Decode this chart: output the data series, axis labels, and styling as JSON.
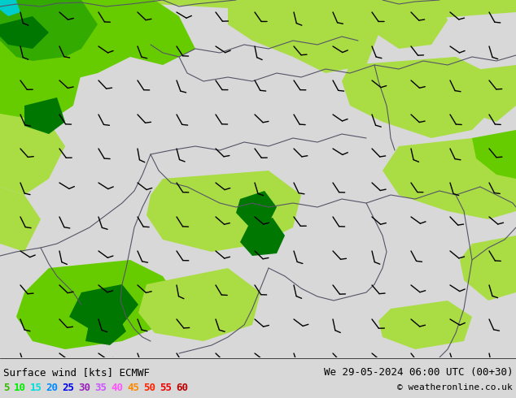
{
  "title_left": "Surface wind [kts] ECMWF",
  "title_right": "We 29-05-2024 06:00 UTC (00+30)",
  "copyright": "© weatheronline.co.uk",
  "legend_values": [
    "5",
    "10",
    "15",
    "20",
    "25",
    "30",
    "35",
    "40",
    "45",
    "50",
    "55",
    "60"
  ],
  "legend_label_colors": [
    "#33bb00",
    "#00ee00",
    "#00dddd",
    "#0088ff",
    "#0000ee",
    "#9922bb",
    "#cc55ff",
    "#ff55ff",
    "#ff8800",
    "#ff2200",
    "#ee0000",
    "#bb0000"
  ],
  "map_bg_color": "#e8d832",
  "fig_width": 6.34,
  "fig_height": 4.9,
  "dpi": 100,
  "font_size_title": 9,
  "font_size_legend": 9,
  "font_size_copyright": 8,
  "border_color": "#555566",
  "barb_color": "#000000",
  "bottom_bg": "#d8d8d8",
  "color_yellow": "#e8d832",
  "color_lightyellow": "#f0e050",
  "color_lightgreen": "#aadd44",
  "color_medgreen": "#66cc00",
  "color_green": "#33aa00",
  "color_darkgreen": "#007700",
  "color_cyan": "#00cccc"
}
